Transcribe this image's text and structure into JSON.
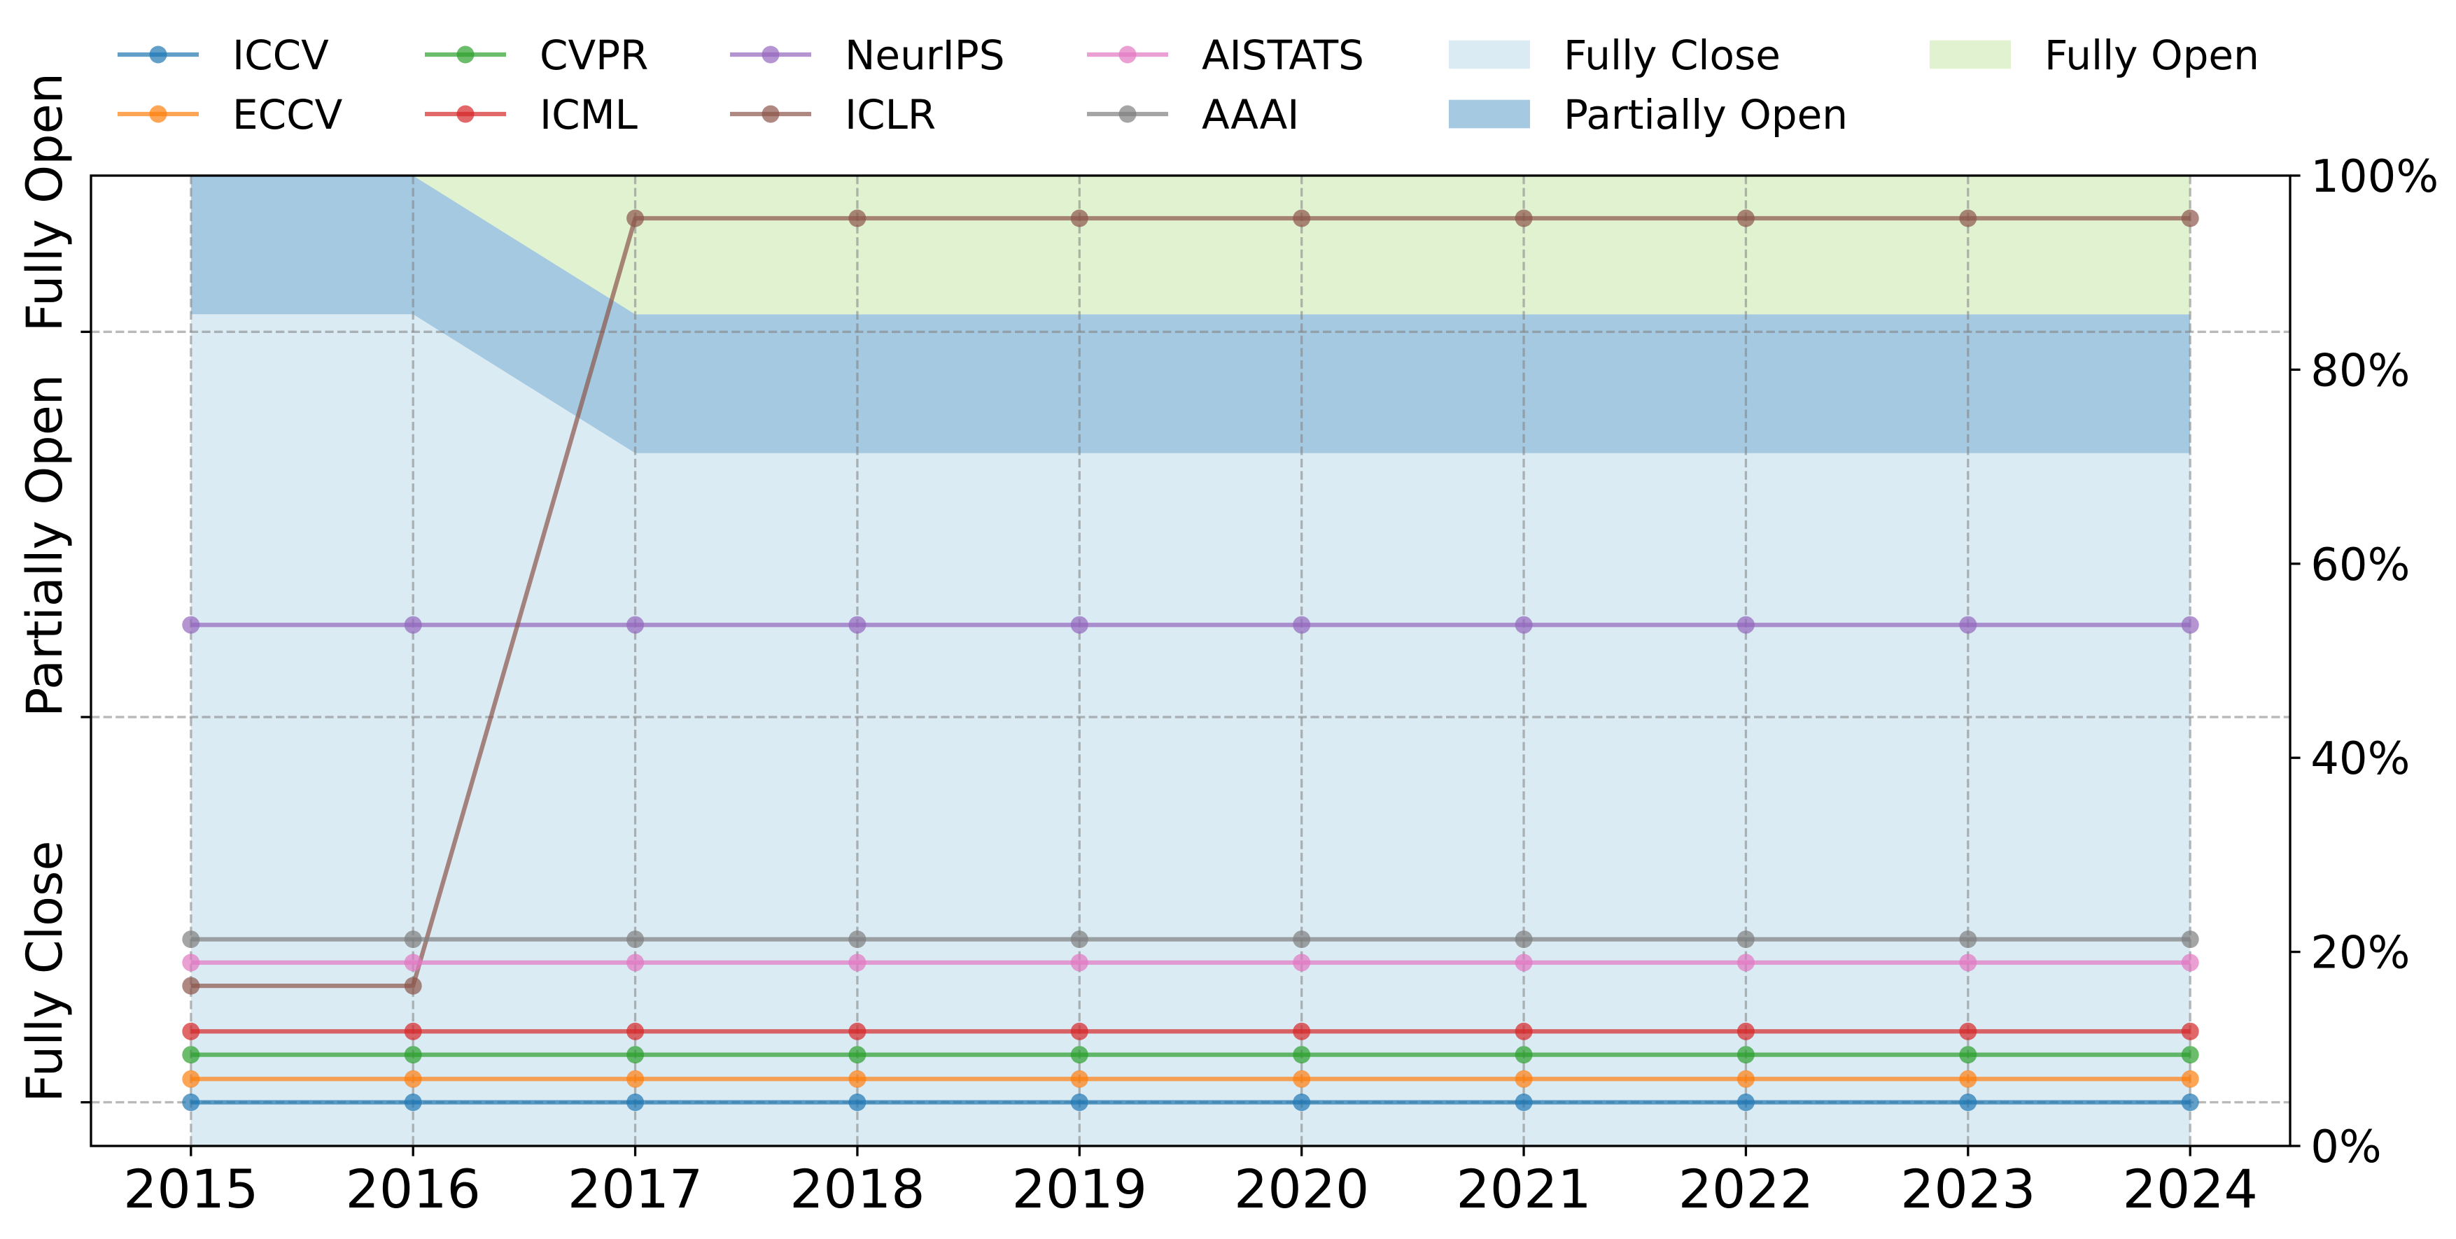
{
  "chart_data": {
    "type": "line",
    "x": [
      2015,
      2016,
      2017,
      2018,
      2019,
      2020,
      2021,
      2022,
      2023,
      2024
    ],
    "xlim": [
      2014.55,
      2024.45
    ],
    "ylim": [
      0,
      100
    ],
    "grid": true,
    "y_right_ticks": [
      0,
      20,
      40,
      60,
      80,
      100
    ],
    "y_right_tick_labels": [
      "0%",
      "20%",
      "40%",
      "60%",
      "80%",
      "100%"
    ],
    "y_left_ticks": [
      {
        "label": "Fully Close",
        "value": 4.5
      },
      {
        "label": "Partially Open",
        "value": 44.2
      },
      {
        "label": "Fully Open",
        "value": 83.9
      }
    ],
    "areas": [
      {
        "name": "Fully Close",
        "color": "#dbebf4",
        "values": [
          85.7,
          85.7,
          71.4,
          71.4,
          71.4,
          71.4,
          71.4,
          71.4,
          71.4,
          71.4
        ]
      },
      {
        "name": "Partially Open",
        "color": "#a5c9e1",
        "values": [
          14.3,
          14.3,
          14.3,
          14.3,
          14.3,
          14.3,
          14.3,
          14.3,
          14.3,
          14.3
        ]
      },
      {
        "name": "Fully Open",
        "color": "#e0f2d0",
        "values": [
          0,
          0,
          14.3,
          14.3,
          14.3,
          14.3,
          14.3,
          14.3,
          14.3,
          14.3
        ]
      }
    ],
    "series": [
      {
        "name": "ICCV",
        "color": "#1f77b4",
        "values": [
          4.5,
          4.5,
          4.5,
          4.5,
          4.5,
          4.5,
          4.5,
          4.5,
          4.5,
          4.5
        ]
      },
      {
        "name": "ECCV",
        "color": "#ff7f0e",
        "values": [
          6.9,
          6.9,
          6.9,
          6.9,
          6.9,
          6.9,
          6.9,
          6.9,
          6.9,
          6.9
        ]
      },
      {
        "name": "CVPR",
        "color": "#2ca02c",
        "values": [
          9.4,
          9.4,
          9.4,
          9.4,
          9.4,
          9.4,
          9.4,
          9.4,
          9.4,
          9.4
        ]
      },
      {
        "name": "ICML",
        "color": "#d62728",
        "values": [
          11.8,
          11.8,
          11.8,
          11.8,
          11.8,
          11.8,
          11.8,
          11.8,
          11.8,
          11.8
        ]
      },
      {
        "name": "NeurIPS",
        "color": "#9467bd",
        "values": [
          53.7,
          53.7,
          53.7,
          53.7,
          53.7,
          53.7,
          53.7,
          53.7,
          53.7,
          53.7
        ]
      },
      {
        "name": "ICLR",
        "color": "#8c564b",
        "values": [
          16.5,
          16.5,
          95.6,
          95.6,
          95.6,
          95.6,
          95.6,
          95.6,
          95.6,
          95.6
        ]
      },
      {
        "name": "AISTATS",
        "color": "#e377c2",
        "values": [
          18.9,
          18.9,
          18.9,
          18.9,
          18.9,
          18.9,
          18.9,
          18.9,
          18.9,
          18.9
        ]
      },
      {
        "name": "AAAI",
        "color": "#7f7f7f",
        "values": [
          21.3,
          21.3,
          21.3,
          21.3,
          21.3,
          21.3,
          21.3,
          21.3,
          21.3,
          21.3
        ]
      }
    ]
  }
}
